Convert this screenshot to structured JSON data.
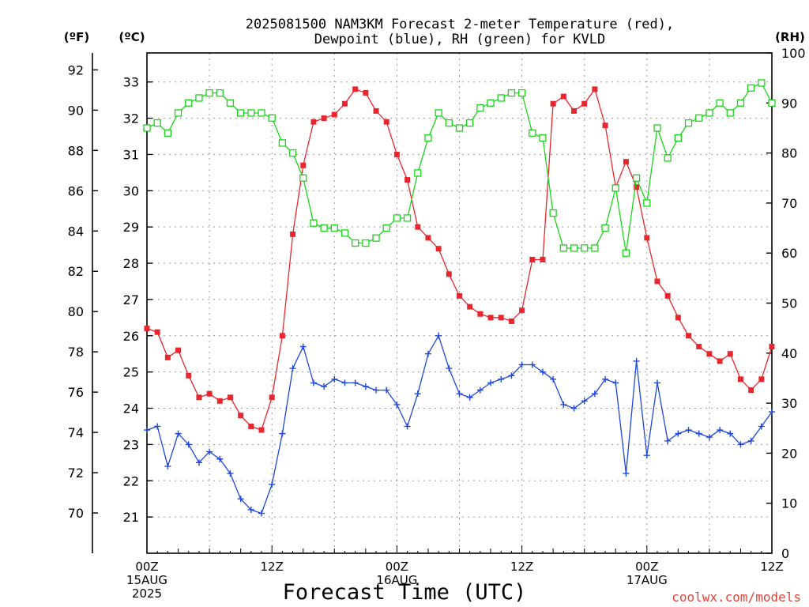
{
  "chart_data": {
    "type": "line",
    "title_line1": "2025081500 NAM3KM Forecast 2-meter Temperature (red),",
    "title_line2": "Dewpoint (blue), RH (green) for KVLD",
    "xlabel": "Forecast Time (UTC)",
    "credit": "coolwx.com/models",
    "unit_f": "(ºF)",
    "unit_c": "(ºC)",
    "unit_rh": "(RH)",
    "x_hours": [
      0,
      1,
      2,
      3,
      4,
      5,
      6,
      7,
      8,
      9,
      10,
      11,
      12,
      13,
      14,
      15,
      16,
      17,
      18,
      19,
      20,
      21,
      22,
      23,
      24,
      25,
      26,
      27,
      28,
      29,
      30,
      31,
      32,
      33,
      34,
      35,
      36,
      37,
      38,
      39,
      40,
      41,
      42,
      43,
      44,
      45,
      46,
      47,
      48,
      49,
      50,
      51,
      52,
      53,
      54,
      55,
      56,
      57,
      58,
      59,
      60
    ],
    "x_range_hours": [
      0,
      60
    ],
    "x_ticks": [
      {
        "hour": 0,
        "lines": [
          "00Z",
          "15AUG",
          "2025"
        ]
      },
      {
        "hour": 12,
        "lines": [
          "12Z"
        ]
      },
      {
        "hour": 24,
        "lines": [
          "00Z",
          "16AUG"
        ]
      },
      {
        "hour": 36,
        "lines": [
          "12Z"
        ]
      },
      {
        "hour": 48,
        "lines": [
          "00Z",
          "17AUG"
        ]
      },
      {
        "hour": 60,
        "lines": [
          "12Z"
        ]
      }
    ],
    "y_left_f": {
      "ticks": [
        70,
        72,
        74,
        76,
        78,
        80,
        82,
        84,
        86,
        88,
        90,
        92
      ]
    },
    "y_left_c": {
      "range": [
        20,
        33.8
      ],
      "ticks": [
        21,
        22,
        23,
        24,
        25,
        26,
        27,
        28,
        29,
        30,
        31,
        32,
        33
      ]
    },
    "y_right_rh": {
      "range": [
        0,
        100
      ],
      "ticks": [
        0,
        10,
        20,
        30,
        40,
        50,
        60,
        70,
        80,
        90,
        100
      ]
    },
    "grid": true,
    "series": [
      {
        "name": "Temperature",
        "units": "°C",
        "color": "#e8262e",
        "marker": "filled-square",
        "values": [
          26.2,
          26.1,
          25.4,
          25.6,
          24.9,
          24.3,
          24.4,
          24.2,
          24.3,
          23.8,
          23.5,
          23.4,
          24.3,
          26.0,
          28.8,
          30.7,
          31.9,
          32.0,
          32.1,
          32.4,
          32.8,
          32.7,
          32.2,
          31.9,
          31.0,
          30.3,
          29.0,
          28.7,
          28.4,
          27.7,
          27.1,
          26.8,
          26.6,
          26.5,
          26.5,
          26.4,
          26.7,
          28.1,
          28.1,
          32.4,
          32.6,
          32.2,
          32.4,
          32.8,
          31.8,
          30.1,
          30.8,
          30.1,
          28.7,
          27.5,
          27.1,
          26.5,
          26.0,
          25.7,
          25.5,
          25.3,
          25.5,
          24.8,
          24.5,
          24.8,
          25.7
        ]
      },
      {
        "name": "Dewpoint",
        "units": "°C",
        "color": "#1e46e0",
        "marker": "plus",
        "values": [
          23.4,
          23.5,
          22.4,
          23.3,
          23.0,
          22.5,
          22.8,
          22.6,
          22.2,
          21.5,
          21.2,
          21.1,
          21.9,
          23.3,
          25.1,
          25.7,
          24.7,
          24.6,
          24.8,
          24.7,
          24.7,
          24.6,
          24.5,
          24.5,
          24.1,
          23.5,
          24.4,
          25.5,
          26.0,
          25.1,
          24.4,
          24.3,
          24.5,
          24.7,
          24.8,
          24.9,
          25.2,
          25.2,
          25.0,
          24.8,
          24.1,
          24.0,
          24.2,
          24.4,
          24.8,
          24.7,
          22.2,
          25.3,
          22.7,
          24.7,
          23.1,
          23.3,
          23.4,
          23.3,
          23.2,
          23.4,
          23.3,
          23.0,
          23.1,
          23.5,
          23.9
        ]
      },
      {
        "name": "RH",
        "units": "%",
        "color": "#1cd41c",
        "marker": "open-square",
        "values": [
          85,
          86,
          84,
          88,
          90,
          91,
          92,
          92,
          90,
          88,
          88,
          88,
          87,
          82,
          80,
          75,
          66,
          65,
          65,
          64,
          62,
          62,
          63,
          65,
          67,
          67,
          76,
          83,
          88,
          86,
          85,
          86,
          89,
          90,
          91,
          92,
          92,
          84,
          83,
          68,
          61,
          61,
          61,
          61,
          65,
          73,
          60,
          75,
          70,
          85,
          79,
          83,
          86,
          87,
          88,
          90,
          88,
          90,
          93,
          94,
          90
        ]
      }
    ]
  }
}
